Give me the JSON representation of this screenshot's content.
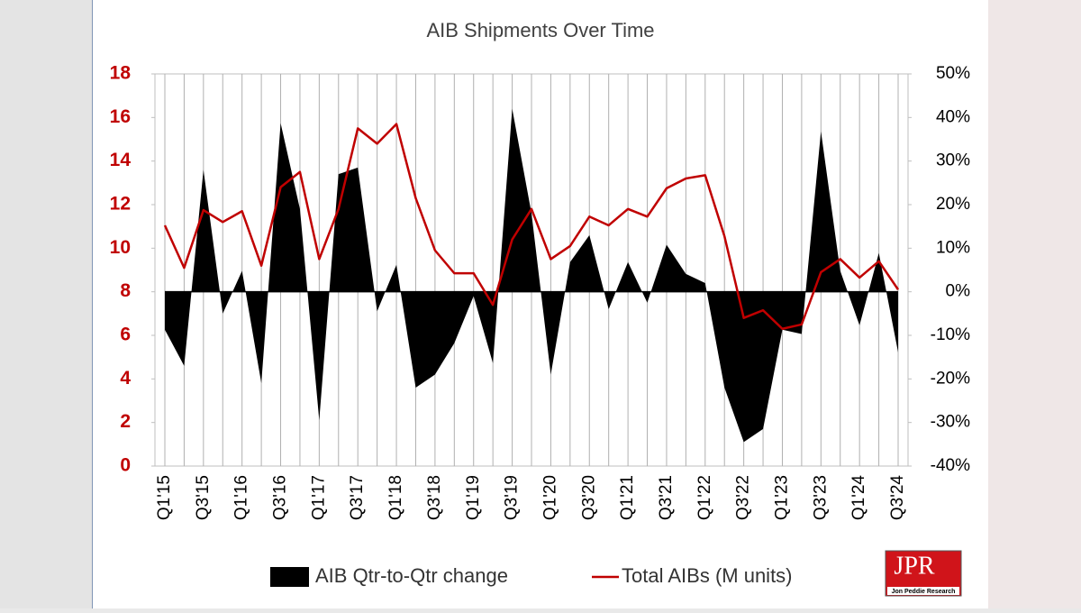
{
  "chart_data": {
    "type": "combo",
    "title": "AIB Shipments Over Time",
    "categories": [
      "Q1'15",
      null,
      "Q3'15",
      null,
      "Q1'16",
      null,
      "Q3'16",
      null,
      "Q1'17",
      null,
      "Q3'17",
      null,
      "Q1'18",
      null,
      "Q3'18",
      null,
      "Q1'19",
      null,
      "Q3'19",
      null,
      "Q1'20",
      null,
      "Q3'20",
      null,
      "Q1'21",
      null,
      "Q3'21",
      null,
      "Q1'22",
      null,
      "Q3'22",
      null,
      "Q1'23",
      null,
      "Q3'23",
      null,
      "Q1'24",
      null,
      "Q3'24"
    ],
    "series": [
      {
        "name": "AIB Qtr-to-Qtr change",
        "type": "area",
        "axis": "y2",
        "color": "#000000",
        "values": [
          -8.7,
          -17,
          28,
          -5,
          4.8,
          -21,
          38.7,
          19,
          -29.5,
          27,
          28.5,
          -4.5,
          6.2,
          -22,
          -19,
          -11.8,
          -1,
          -16.4,
          42,
          18,
          -19,
          6.8,
          13,
          -4,
          6.8,
          -2.5,
          10.8,
          4.1,
          2,
          -22,
          -34.5,
          -31.5,
          -8.7,
          -9.7,
          36.8,
          4.8,
          -7.7,
          8.9,
          -13.9
        ]
      },
      {
        "name": "Total AIBs (M units)",
        "type": "line",
        "axis": "y",
        "color": "#c00000",
        "values": [
          11.05,
          9.1,
          11.75,
          11.2,
          11.7,
          9.2,
          12.8,
          13.5,
          9.5,
          11.8,
          15.5,
          14.8,
          15.7,
          12.3,
          9.9,
          8.85,
          8.85,
          7.4,
          10.4,
          11.8,
          9.5,
          10.1,
          11.45,
          11.05,
          11.8,
          11.45,
          12.75,
          13.2,
          13.35,
          10.55,
          6.8,
          7.15,
          6.3,
          6.5,
          8.9,
          9.5,
          8.65,
          9.4,
          8.1
        ]
      }
    ],
    "ylim": [
      0,
      18
    ],
    "yticks": [
      0,
      2,
      4,
      6,
      8,
      10,
      12,
      14,
      16,
      18
    ],
    "y2lim": [
      -40,
      50
    ],
    "y2ticks": [
      {
        "value": -40,
        "label": "-40%"
      },
      {
        "value": -30,
        "label": "-30%"
      },
      {
        "value": -20,
        "label": "-20%"
      },
      {
        "value": -10,
        "label": "-10%"
      },
      {
        "value": 0,
        "label": "0%"
      },
      {
        "value": 10,
        "label": "10%"
      },
      {
        "value": 20,
        "label": "20%"
      },
      {
        "value": 30,
        "label": "30%"
      },
      {
        "value": 40,
        "label": "40%"
      },
      {
        "value": 50,
        "label": "50%"
      }
    ],
    "ytick_color": "#c00000",
    "y2tick_color": "#000000",
    "grid": "vertical",
    "legend": "bottom"
  },
  "logo": {
    "text": "JPR",
    "subtext": "Jon Peddie Research"
  }
}
